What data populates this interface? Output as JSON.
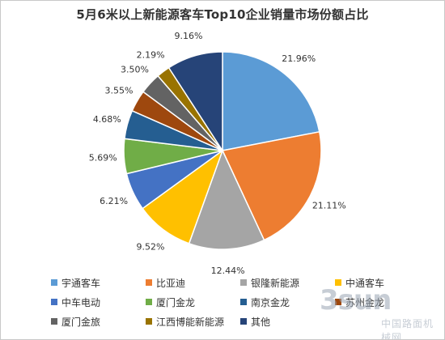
{
  "watermark": {
    "mark": "3sun",
    "sub": "中国路面机械网"
  },
  "chart_data": {
    "type": "pie",
    "title": "5月6米以上新能源客车Top10企业销量市场份额占比",
    "unit": "%",
    "grid": false,
    "legend_position": "bottom",
    "slices": [
      {
        "label": "宇通客车",
        "value": 21.96,
        "display": "21.96%",
        "color": "#5b9bd5"
      },
      {
        "label": "比亚迪",
        "value": 21.11,
        "display": "21.11%",
        "color": "#ed7d31"
      },
      {
        "label": "银隆新能源",
        "value": 12.44,
        "display": "12.44%",
        "color": "#a5a5a5"
      },
      {
        "label": "中通客车",
        "value": 9.52,
        "display": "9.52%",
        "color": "#ffc000"
      },
      {
        "label": "中车电动",
        "value": 6.21,
        "display": "6.21%",
        "color": "#4472c4"
      },
      {
        "label": "厦门金龙",
        "value": 5.69,
        "display": "5.69%",
        "color": "#70ad47"
      },
      {
        "label": "南京金龙",
        "value": 4.68,
        "display": "4.68%",
        "color": "#255e91"
      },
      {
        "label": "苏州金龙",
        "value": 3.55,
        "display": "3.55%",
        "color": "#9e480e"
      },
      {
        "label": "厦门金旅",
        "value": 3.5,
        "display": "3.50%",
        "color": "#636363"
      },
      {
        "label": "江西博能新能源",
        "value": 2.19,
        "display": "2.19%",
        "color": "#997300"
      },
      {
        "label": "其他",
        "value": 9.16,
        "display": "9.16%",
        "color": "#264478"
      }
    ]
  }
}
